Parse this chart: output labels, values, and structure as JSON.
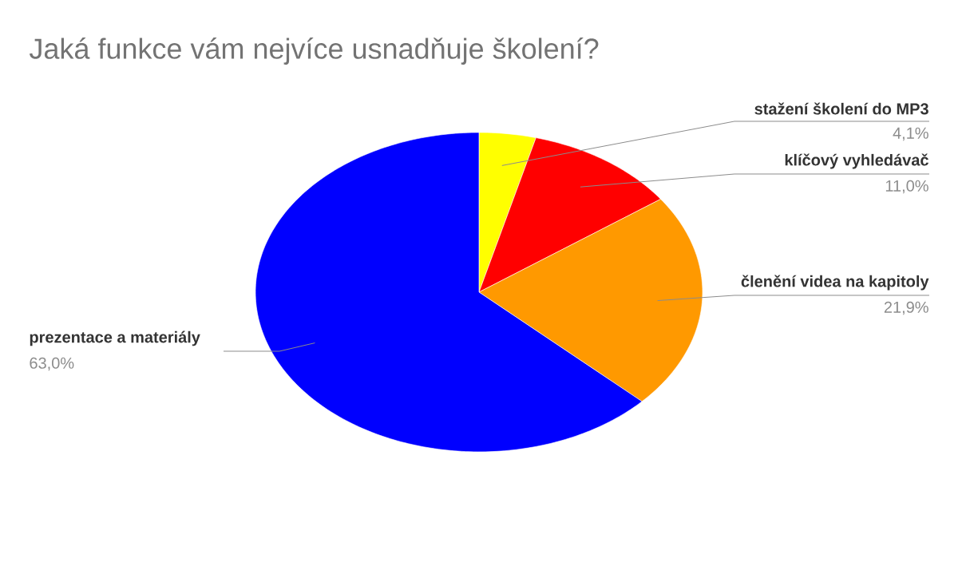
{
  "chart_data": {
    "type": "pie",
    "title": "Jaká funkce vám nejvíce usnadňuje školení?",
    "categories": [
      "stažení školení do MP3",
      "klíčový vyhledávač",
      "členění videa na kapitoly",
      "prezentace a materiály"
    ],
    "values": [
      4.1,
      11.0,
      21.9,
      63.0
    ],
    "value_labels": [
      "4,1%",
      "11,0%",
      "21,9%",
      "63,0%"
    ],
    "colors": [
      "#ffff00",
      "#ff0000",
      "#ff9900",
      "#0000ff"
    ]
  }
}
